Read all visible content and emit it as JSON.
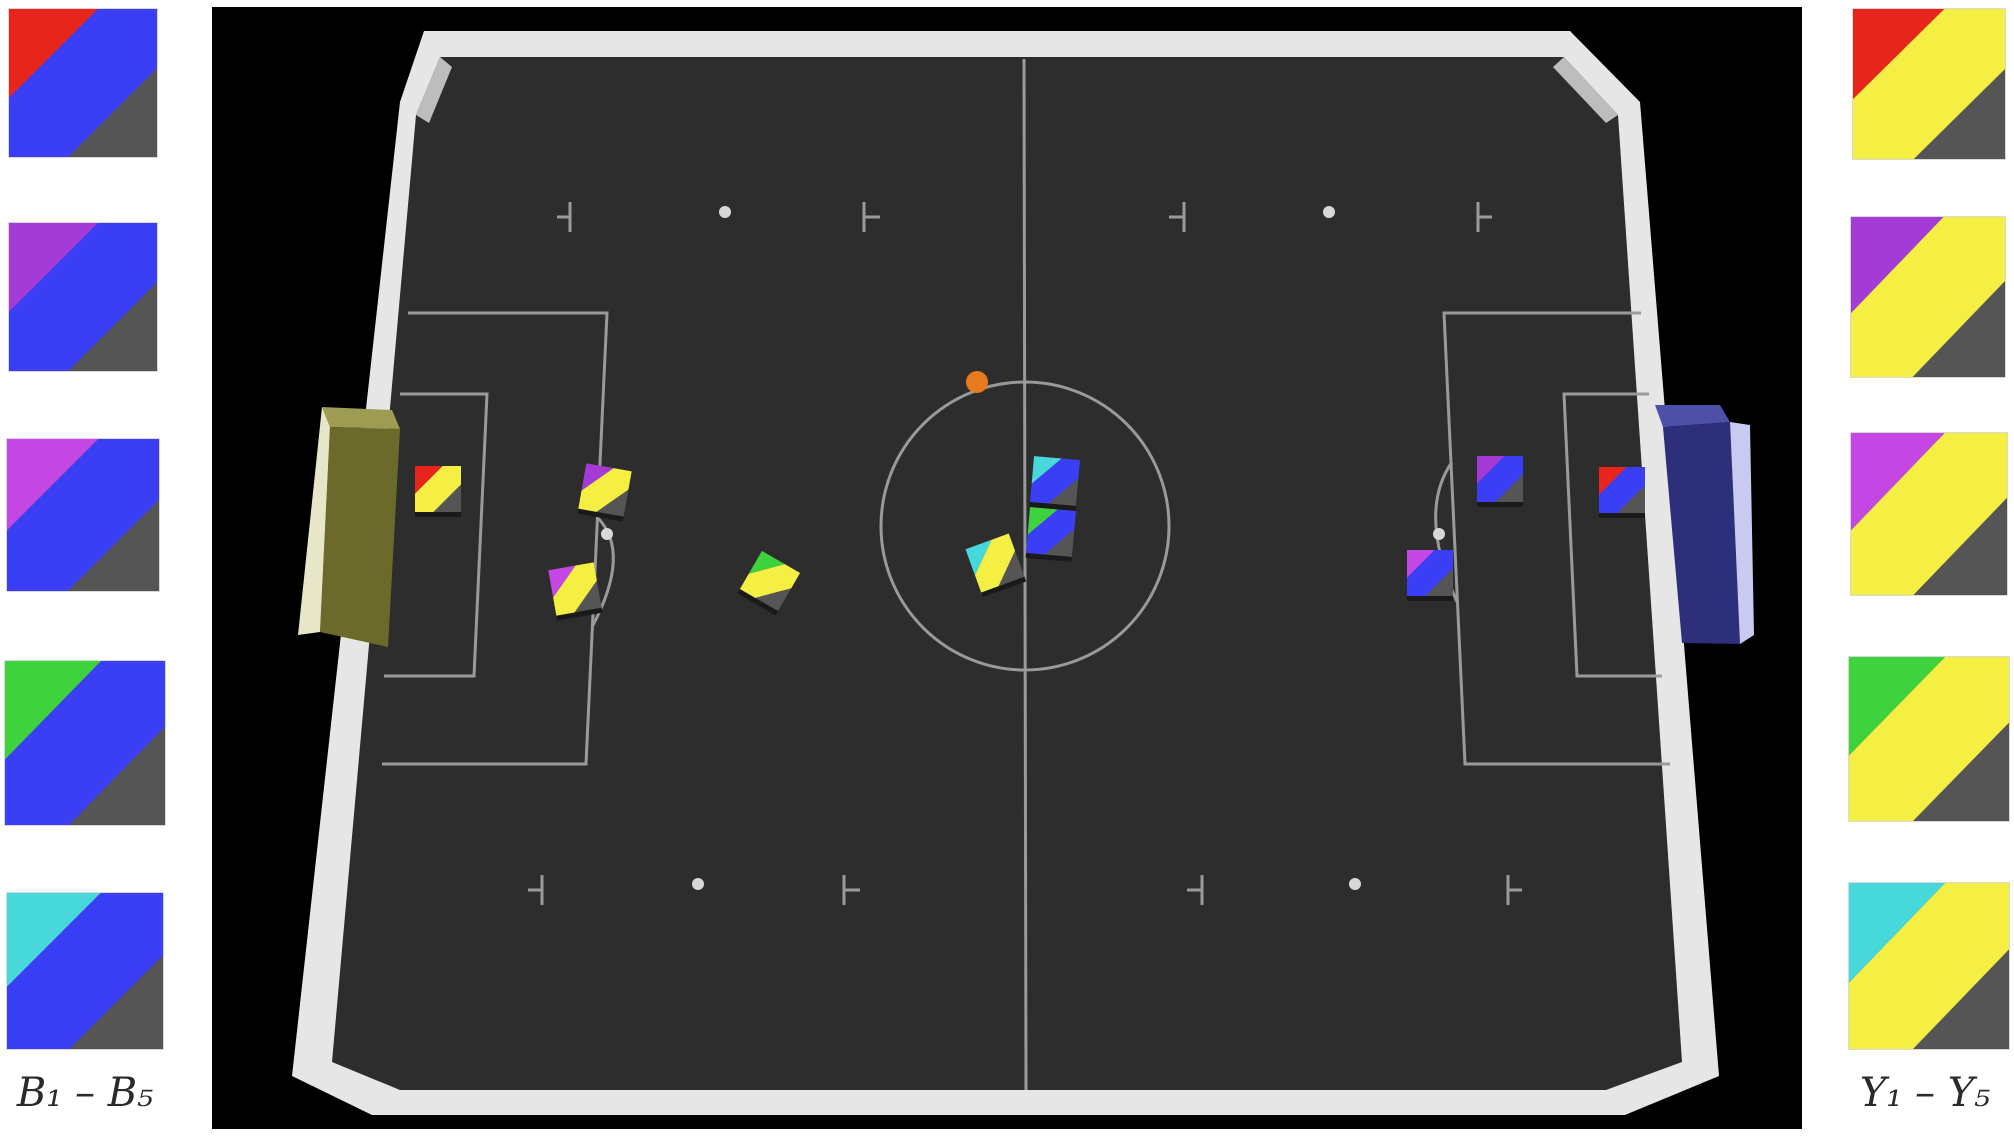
{
  "legend_left": {
    "caption": "B₁ – B₅",
    "team_color": "#3a3ef5",
    "robots": [
      {
        "id": "B1",
        "marker_color": "#e8251c"
      },
      {
        "id": "B2",
        "marker_color": "#a43bd6"
      },
      {
        "id": "B3",
        "marker_color": "#c447e4"
      },
      {
        "id": "B4",
        "marker_color": "#3fd23f"
      },
      {
        "id": "B5",
        "marker_color": "#47d8dc"
      }
    ]
  },
  "legend_right": {
    "caption": "Y₁ – Y₅",
    "team_color": "#f5ef44",
    "robots": [
      {
        "id": "Y1",
        "marker_color": "#e8251c"
      },
      {
        "id": "Y2",
        "marker_color": "#a43bd6"
      },
      {
        "id": "Y3",
        "marker_color": "#c447e4"
      },
      {
        "id": "Y4",
        "marker_color": "#3fd23f"
      },
      {
        "id": "Y5",
        "marker_color": "#47d8dc"
      }
    ]
  },
  "field": {
    "surface_color": "#2d2d2d",
    "wall_color": "#e6e6e6",
    "line_color": "#9a9a9a",
    "left_goal_color": "#6b6a2a",
    "right_goal_color": "#2e2f7a",
    "ball_color": "#e87a1e",
    "body_color": "#555555"
  }
}
